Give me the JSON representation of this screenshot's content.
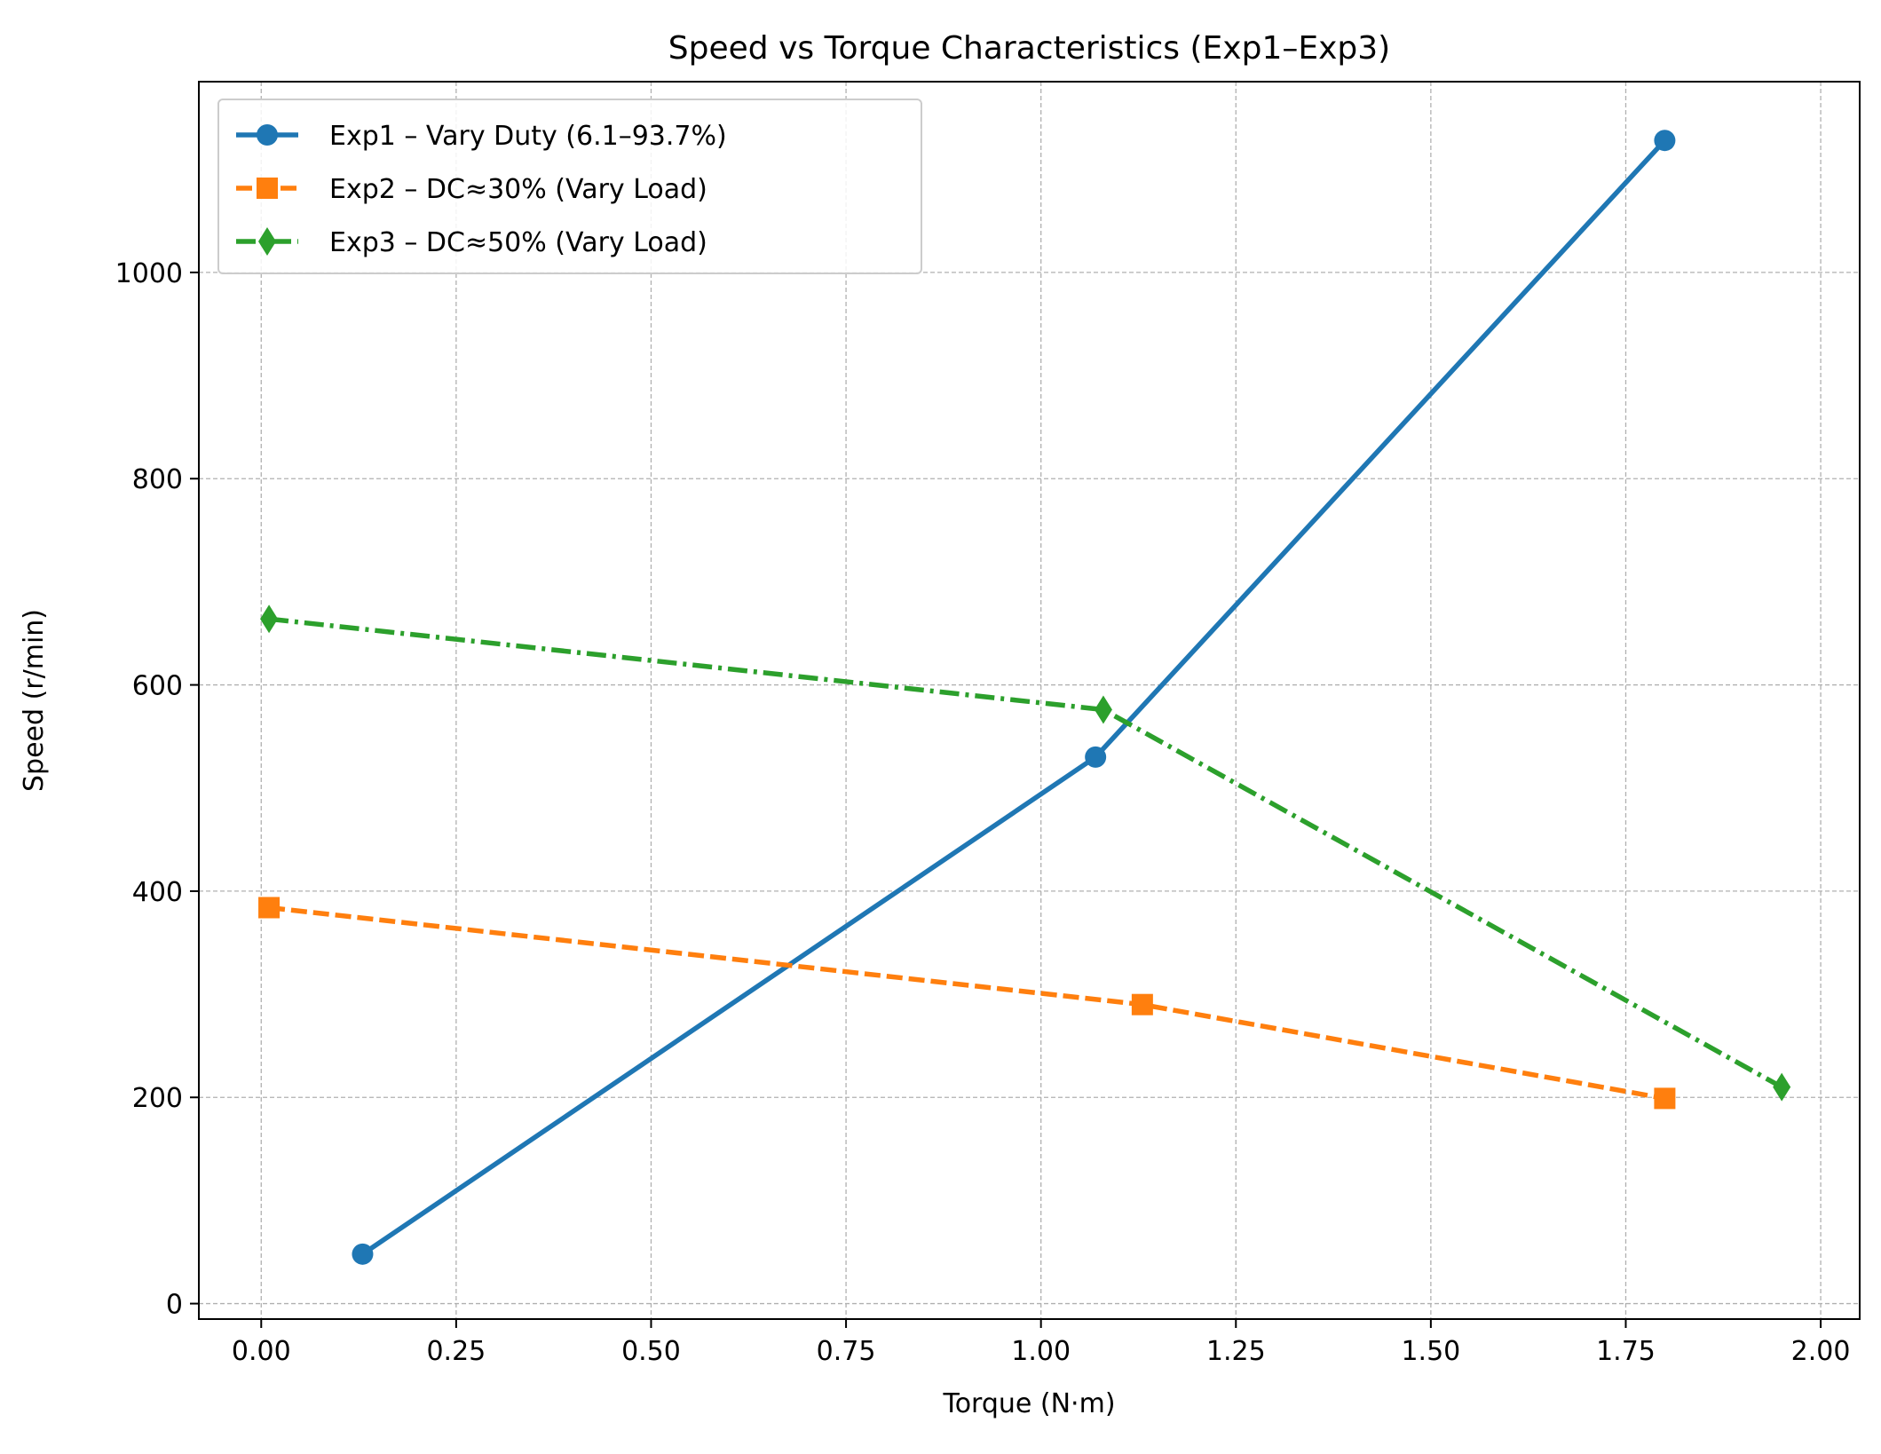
{
  "chart_data": {
    "type": "line",
    "title": "Speed vs Torque Characteristics (Exp1–Exp3)",
    "xlabel": "Torque (N·m)",
    "ylabel": "Speed (r/min)",
    "xlim": [
      -0.08,
      2.05
    ],
    "ylim": [
      -15,
      1185
    ],
    "xticks": [
      0.0,
      0.25,
      0.5,
      0.75,
      1.0,
      1.25,
      1.5,
      1.75,
      2.0
    ],
    "xtick_labels": [
      "0.00",
      "0.25",
      "0.50",
      "0.75",
      "1.00",
      "1.25",
      "1.50",
      "1.75",
      "2.00"
    ],
    "yticks": [
      0,
      200,
      400,
      600,
      800,
      1000
    ],
    "ytick_labels": [
      "0",
      "200",
      "400",
      "600",
      "800",
      "1000"
    ],
    "grid": true,
    "legend_position": "top-left",
    "series": [
      {
        "name": "Exp1 – Vary Duty (6.1–93.7%)",
        "color": "#1f77b4",
        "line_style": "solid",
        "marker": "circle",
        "x": [
          0.13,
          1.07,
          1.8
        ],
        "y": [
          48,
          530,
          1128
        ]
      },
      {
        "name": "Exp2 – DC≈30% (Vary Load)",
        "color": "#ff7f0e",
        "line_style": "dashed",
        "marker": "square",
        "x": [
          0.01,
          1.13,
          1.8
        ],
        "y": [
          384,
          290,
          199
        ]
      },
      {
        "name": "Exp3 – DC≈50% (Vary Load)",
        "color": "#2ca02c",
        "line_style": "dashdot",
        "marker": "diamond",
        "x": [
          0.01,
          1.08,
          1.95
        ],
        "y": [
          664,
          576,
          210
        ]
      }
    ]
  }
}
